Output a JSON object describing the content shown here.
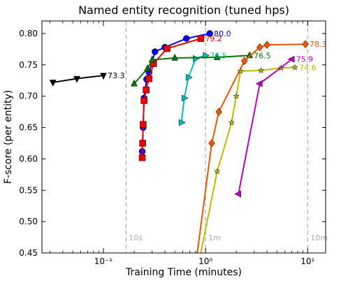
{
  "chart_data": {
    "type": "line",
    "title": "Named entity recognition (tuned hps)",
    "xlabel": "Training Time (minutes)",
    "ylabel": "F-score (per entity)",
    "xscale": "log",
    "xlim": [
      0.025,
      15
    ],
    "ylim": [
      0.45,
      0.82
    ],
    "yticks": [
      0.45,
      0.5,
      0.55,
      0.6,
      0.65,
      0.7,
      0.75,
      0.8
    ],
    "ytick_labels": [
      "0.45",
      "0.50",
      "0.55",
      "0.60",
      "0.65",
      "0.70",
      "0.75",
      "0.80"
    ],
    "xticks": [
      0.1,
      1,
      10
    ],
    "xtick_labels": [
      "10⁻¹",
      "10⁰",
      "10¹"
    ],
    "grid": false,
    "reference_lines": [
      {
        "x": 0.1667,
        "label": "10s",
        "color": "#aaaaaa"
      },
      {
        "x": 1.0,
        "label": "1m",
        "color": "#aaaaaa"
      },
      {
        "x": 10.0,
        "label": "10m",
        "color": "#aaaaaa"
      }
    ],
    "series": [
      {
        "color": "#000000",
        "marker": "triangle-down",
        "end_label": "73.3",
        "x": [
          0.032,
          0.055,
          0.1
        ],
        "y": [
          0.722,
          0.728,
          0.733
        ]
      },
      {
        "color": "#0000ee",
        "marker": "circle",
        "end_label": "80.0",
        "x": [
          0.24,
          0.245,
          0.25,
          0.265,
          0.28,
          0.32,
          0.4,
          0.65,
          1.1
        ],
        "y": [
          0.612,
          0.65,
          0.697,
          0.727,
          0.738,
          0.771,
          0.778,
          0.792,
          0.8
        ]
      },
      {
        "color": "#ee0000",
        "marker": "square",
        "end_label": "79.2",
        "x": [
          0.24,
          0.242,
          0.245,
          0.25,
          0.262,
          0.28,
          0.31,
          0.42,
          0.9
        ],
        "y": [
          0.602,
          0.625,
          0.655,
          0.693,
          0.71,
          0.728,
          0.752,
          0.776,
          0.792
        ]
      },
      {
        "color": "#00bbbb",
        "marker": "triangle-right",
        "end_label": "76.5",
        "x": [
          0.58,
          0.62,
          0.68,
          0.8,
          1.0
        ],
        "y": [
          0.658,
          0.697,
          0.73,
          0.76,
          0.765
        ]
      },
      {
        "color": "#007700",
        "marker": "triangle-up",
        "end_label": "76.5",
        "x": [
          0.2,
          0.27,
          0.3,
          0.5,
          1.3,
          2.7
        ],
        "y": [
          0.72,
          0.744,
          0.758,
          0.761,
          0.762,
          0.765
        ]
      },
      {
        "color": "#ee5500",
        "marker": "diamond",
        "end_label": "78.3",
        "x": [
          0.8,
          1.15,
          1.35,
          2.4,
          3.4,
          4.0,
          9.5
        ],
        "y": [
          0.43,
          0.625,
          0.675,
          0.756,
          0.778,
          0.782,
          0.783
        ]
      },
      {
        "color": "#bbbb00",
        "marker": "star",
        "end_label": "74.6",
        "x": [
          0.85,
          1.3,
          1.8,
          2.0,
          2.2,
          3.5,
          5.5,
          7.5
        ],
        "y": [
          0.43,
          0.58,
          0.658,
          0.7,
          0.74,
          0.741,
          0.745,
          0.746
        ]
      },
      {
        "color": "#bb00bb",
        "marker": "triangle-left",
        "end_label": "75.9",
        "x": [
          2.1,
          3.4,
          7.0
        ],
        "y": [
          0.544,
          0.72,
          0.759
        ]
      }
    ]
  }
}
